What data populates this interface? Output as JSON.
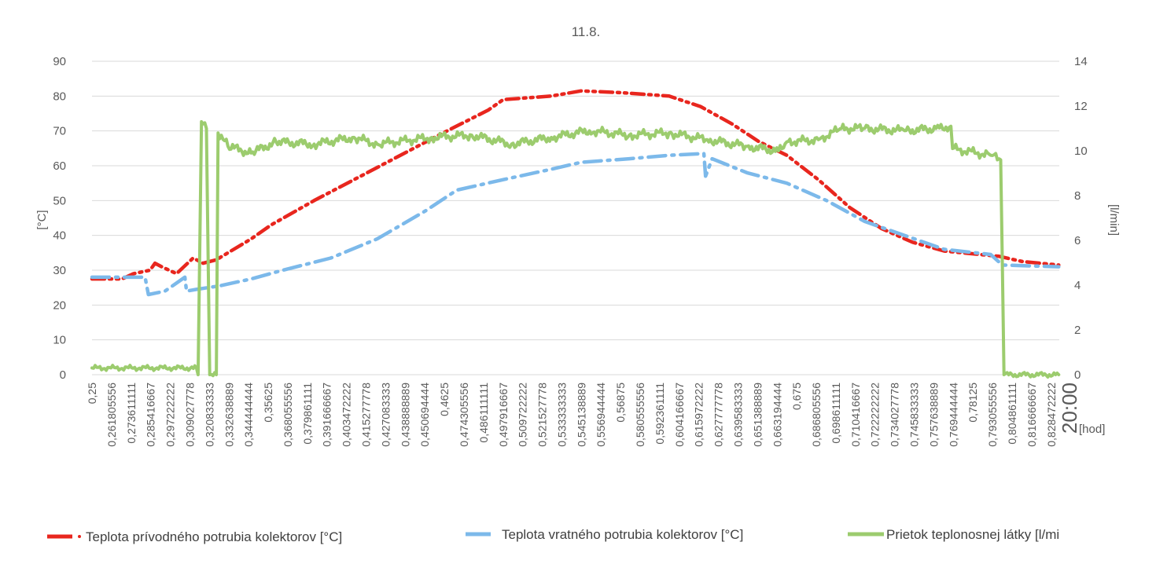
{
  "chart_data": {
    "type": "line",
    "title": "11.8.",
    "xlabel": "[hod]",
    "ylabel_left": "[°C]",
    "ylabel_right": "[l/min]",
    "ylim_left": [
      0,
      90
    ],
    "ylim_right": [
      0,
      14
    ],
    "yticks_left": [
      "0",
      "10",
      "20",
      "30",
      "40",
      "50",
      "60",
      "70",
      "80",
      "90"
    ],
    "yticks_right": [
      "0",
      "2",
      "4",
      "6",
      "8",
      "10",
      "12",
      "14"
    ],
    "xlim": [
      0.25,
      0.833333
    ],
    "grid": true,
    "legend_position": "bottom",
    "xtick_labels": [
      "0,25",
      "0,261805556",
      "0,273611111",
      "0,285416667",
      "0,297222222",
      "0,309027778",
      "0,320833333",
      "0,332638889",
      "0,344444444",
      "0,35625",
      "0,368055556",
      "0,379861111",
      "0,391666667",
      "0,403472222",
      "0,415277778",
      "0,427083333",
      "0,438888889",
      "0,450694444",
      "0,4625",
      "0,474305556",
      "0,486111111",
      "0,497916667",
      "0,509722222",
      "0,521527778",
      "0,533333333",
      "0,545138889",
      "0,556944444",
      "0,56875",
      "0,580555556",
      "0,592361111",
      "0,604166667",
      "0,615972222",
      "0,627777778",
      "0,639583333",
      "0,651388889",
      "0,663194444",
      "0,675",
      "0,686805556",
      "0,698611111",
      "0,710416667",
      "0,722222222",
      "0,734027778",
      "0,745833333",
      "0,757638889",
      "0,769444444",
      "0,78125",
      "0,793055556",
      "0,804861111",
      "0,816666667",
      "0,828472222"
    ],
    "xtick_last": "20:00",
    "series": [
      {
        "name": "Teplota prívodného  potrubia  kolektorov  [°C]",
        "axis": "left",
        "color": "#e8261e",
        "points": [
          [
            0.25,
            27.5
          ],
          [
            0.268,
            27.5
          ],
          [
            0.275,
            29
          ],
          [
            0.285,
            30
          ],
          [
            0.288,
            32
          ],
          [
            0.292,
            31
          ],
          [
            0.301,
            29
          ],
          [
            0.311,
            33.5
          ],
          [
            0.317,
            32
          ],
          [
            0.325,
            33
          ],
          [
            0.346,
            39
          ],
          [
            0.358,
            43
          ],
          [
            0.384,
            50
          ],
          [
            0.408,
            56
          ],
          [
            0.432,
            62
          ],
          [
            0.46,
            69
          ],
          [
            0.489,
            76
          ],
          [
            0.498,
            79
          ],
          [
            0.527,
            80
          ],
          [
            0.545,
            81.5
          ],
          [
            0.569,
            81
          ],
          [
            0.598,
            80
          ],
          [
            0.617,
            77
          ],
          [
            0.636,
            72
          ],
          [
            0.652,
            67
          ],
          [
            0.669,
            63
          ],
          [
            0.688,
            56
          ],
          [
            0.707,
            48
          ],
          [
            0.726,
            42
          ],
          [
            0.745,
            38
          ],
          [
            0.764,
            35.5
          ],
          [
            0.797,
            34
          ],
          [
            0.811,
            32.5
          ],
          [
            0.833,
            31.5
          ]
        ]
      },
      {
        "name": "Teplota vratného potrubia  kolektorov  [°C]",
        "axis": "left",
        "color": "#7cb9ea",
        "points": [
          [
            0.25,
            28
          ],
          [
            0.268,
            28
          ],
          [
            0.282,
            28
          ],
          [
            0.284,
            23
          ],
          [
            0.294,
            24
          ],
          [
            0.306,
            28
          ],
          [
            0.307,
            24
          ],
          [
            0.313,
            24.5
          ],
          [
            0.327,
            25.5
          ],
          [
            0.346,
            27.5
          ],
          [
            0.365,
            30
          ],
          [
            0.394,
            33.5
          ],
          [
            0.422,
            39
          ],
          [
            0.451,
            47
          ],
          [
            0.47,
            53
          ],
          [
            0.498,
            56
          ],
          [
            0.527,
            59
          ],
          [
            0.545,
            61
          ],
          [
            0.574,
            62
          ],
          [
            0.598,
            63
          ],
          [
            0.619,
            63.5
          ],
          [
            0.62,
            57
          ],
          [
            0.624,
            62
          ],
          [
            0.645,
            58
          ],
          [
            0.669,
            55
          ],
          [
            0.693,
            50
          ],
          [
            0.716,
            44
          ],
          [
            0.74,
            40
          ],
          [
            0.764,
            36
          ],
          [
            0.792,
            34.5
          ],
          [
            0.799,
            31.5
          ],
          [
            0.833,
            31
          ]
        ]
      },
      {
        "name": "Prietok  teplonosnej  látky [l/mi",
        "axis": "right",
        "color": "#9ccc6e",
        "points": [
          [
            0.25,
            0.3
          ],
          [
            0.313,
            0.3
          ],
          [
            0.314,
            0
          ],
          [
            0.316,
            11.3
          ],
          [
            0.319,
            11
          ],
          [
            0.321,
            0
          ],
          [
            0.325,
            0
          ],
          [
            0.326,
            10.8
          ],
          [
            0.332,
            10.2
          ],
          [
            0.346,
            9.9
          ],
          [
            0.361,
            10.4
          ],
          [
            0.384,
            10.3
          ],
          [
            0.408,
            10.6
          ],
          [
            0.422,
            10.3
          ],
          [
            0.455,
            10.6
          ],
          [
            0.479,
            10.7
          ],
          [
            0.503,
            10.3
          ],
          [
            0.527,
            10.6
          ],
          [
            0.55,
            10.9
          ],
          [
            0.574,
            10.7
          ],
          [
            0.598,
            10.8
          ],
          [
            0.621,
            10.5
          ],
          [
            0.645,
            10.2
          ],
          [
            0.664,
            10
          ],
          [
            0.669,
            10.4
          ],
          [
            0.688,
            10.5
          ],
          [
            0.702,
            11
          ],
          [
            0.716,
            11
          ],
          [
            0.74,
            10.9
          ],
          [
            0.759,
            11
          ],
          [
            0.768,
            11.1
          ],
          [
            0.769,
            10.1
          ],
          [
            0.792,
            9.8
          ],
          [
            0.798,
            9.6
          ],
          [
            0.8,
            0
          ],
          [
            0.833,
            0
          ]
        ]
      }
    ]
  }
}
